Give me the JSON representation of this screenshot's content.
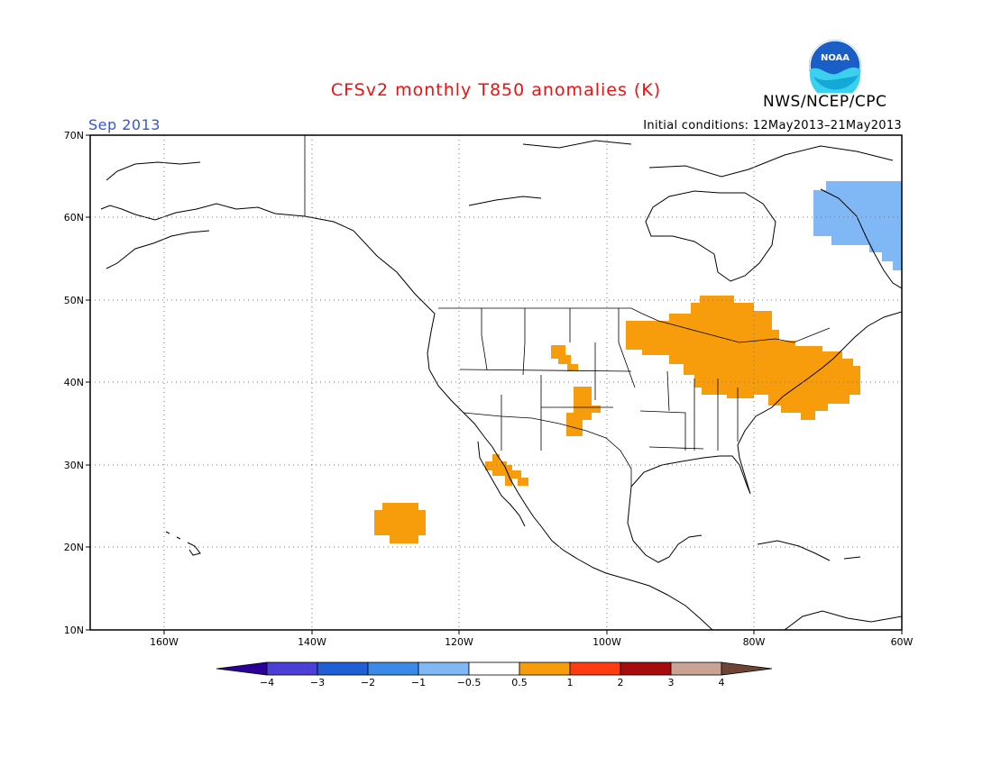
{
  "header": {
    "title": "CFSv2 monthly T850 anomalies (K)",
    "month": "Sep 2013",
    "initial_conditions": "Initial conditions: 12May2013–21May2013",
    "agency": "NWS/NCEP/CPC",
    "logo_text": "NOAA"
  },
  "map": {
    "lat_labels": [
      "70N",
      "60N",
      "50N",
      "40N",
      "30N",
      "20N",
      "10N"
    ],
    "lon_labels": [
      "160W",
      "140W",
      "120W",
      "100W",
      "80W",
      "60W"
    ],
    "grid": true,
    "extent": {
      "lon": [
        -170,
        -60
      ],
      "lat": [
        10,
        70
      ]
    }
  },
  "colorbar": {
    "tick_labels": [
      "−4",
      "−3",
      "−2",
      "−1",
      "−0.5",
      "0.5",
      "1",
      "2",
      "3",
      "4"
    ],
    "colors": [
      "#2a0099",
      "#4a3fd6",
      "#1f5fd6",
      "#3c8ae8",
      "#7fb8f5",
      "#ffffff",
      "#f79c0a",
      "#ff3b10",
      "#a60c0c",
      "#c9a393",
      "#6e4535"
    ]
  }
}
